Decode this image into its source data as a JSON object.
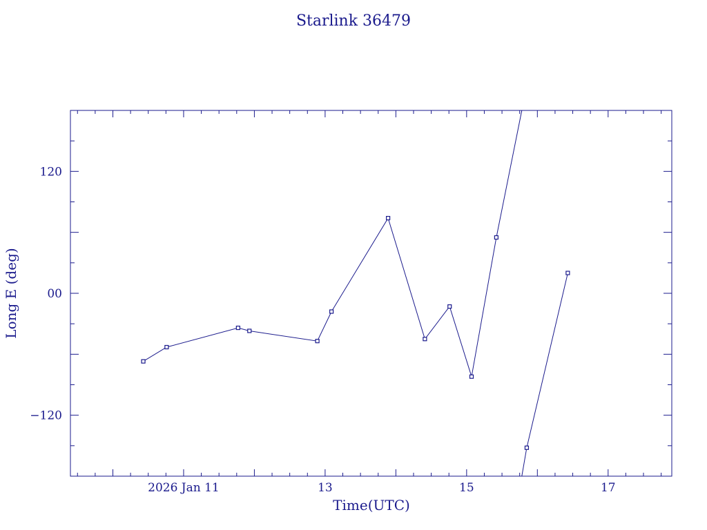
{
  "chart_data": {
    "type": "line",
    "title": "Starlink 36479",
    "xlabel": "Time(UTC)",
    "ylabel": "Long E (deg)",
    "xlim": [
      9.4,
      17.9
    ],
    "ylim": [
      -180,
      180
    ],
    "x_ticks": [
      {
        "value": 11,
        "label": "2026 Jan 11"
      },
      {
        "value": 13,
        "label": "13"
      },
      {
        "value": 15,
        "label": "15"
      },
      {
        "value": 17,
        "label": "17"
      }
    ],
    "y_ticks": [
      {
        "value": 120,
        "label": "120"
      },
      {
        "value": 0,
        "label": "00"
      },
      {
        "value": -120,
        "label": "−120"
      }
    ],
    "series": [
      {
        "x": [
          10.43,
          10.76,
          11.77,
          11.93,
          12.89,
          13.09,
          13.89,
          14.41,
          14.76,
          15.07,
          15.42,
          15.78
        ],
        "y": [
          -67,
          -53,
          -34,
          -37,
          -47,
          -18,
          74,
          -45,
          -13,
          -82,
          55,
          180
        ]
      },
      {
        "x": [
          15.78,
          15.85,
          16.43
        ],
        "y": [
          -180,
          -152,
          20
        ]
      }
    ],
    "colors": {
      "line": "#1a1a8c",
      "axes": "#1a1a8c",
      "text": "#1a1a8c"
    },
    "grid": false,
    "legend": "none"
  }
}
